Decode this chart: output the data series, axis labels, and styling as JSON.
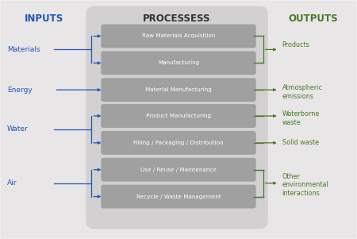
{
  "title": "PROCESSESS",
  "title_left": "INPUTS",
  "title_right": "OUTPUTS",
  "title_color_left": "#2255bb",
  "title_color_center": "#333333",
  "title_color_right": "#4a7a2a",
  "figure_bg": "#f0eeee",
  "outer_rounded_bg": "#e0dede",
  "inner_rounded_bg": "#d4d2d2",
  "box_color": "#aaaaaa",
  "box_text_color": "#ffffff",
  "arrow_left_color": "#2255bb",
  "arrow_right_color": "#4a7a2a",
  "input_labels": [
    "Materials",
    "Energy",
    "Water",
    "Air"
  ],
  "input_label_color": "#2255bb",
  "process_boxes": [
    "Raw Materials Acquisition",
    "Manufacturing",
    "Material Manufacturing",
    "Product Manufacturing",
    "Filling / Packaging / Distribution",
    "Use / Reuse / Maintenance",
    "Recycle / Waste Management"
  ],
  "output_labels": [
    "Products",
    "Atmospheric\nemissions",
    "Waterborne\nwaste",
    "Solid waste",
    "Other\nenvironmental\ninteractions"
  ],
  "output_label_color": "#4a7a2a"
}
